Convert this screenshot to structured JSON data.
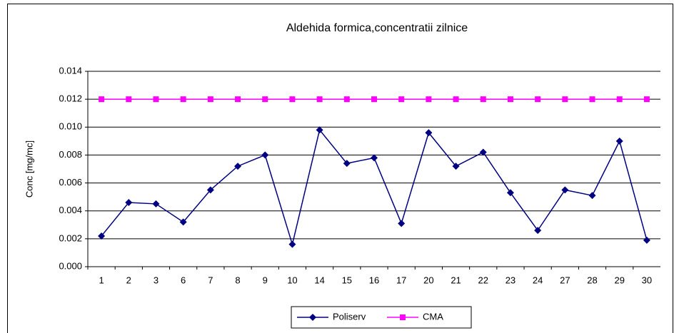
{
  "chart_data": {
    "type": "line",
    "title": "Aldehida formica,concentratii zilnice",
    "y_label": "Conc [mg/mc]",
    "categories": [
      "1",
      "2",
      "3",
      "6",
      "7",
      "8",
      "9",
      "10",
      "14",
      "15",
      "16",
      "17",
      "20",
      "21",
      "22",
      "23",
      "24",
      "27",
      "28",
      "29",
      "30"
    ],
    "series": [
      {
        "name": "Poliserv",
        "color": "#000080",
        "marker": "diamond",
        "values": [
          0.0022,
          0.0046,
          0.0045,
          0.0032,
          0.0055,
          0.0072,
          0.008,
          0.0016,
          0.0098,
          0.0074,
          0.0078,
          0.0031,
          0.0096,
          0.0072,
          0.0082,
          0.0053,
          0.0026,
          0.0055,
          0.0051,
          0.009,
          0.0019
        ]
      },
      {
        "name": "CMA",
        "color": "#ff00ff",
        "marker": "square",
        "values": [
          0.012,
          0.012,
          0.012,
          0.012,
          0.012,
          0.012,
          0.012,
          0.012,
          0.012,
          0.012,
          0.012,
          0.012,
          0.012,
          0.012,
          0.012,
          0.012,
          0.012,
          0.012,
          0.012,
          0.012,
          0.012
        ]
      }
    ],
    "ylim": [
      0,
      0.014
    ],
    "yticks": [
      {
        "value": 0,
        "label": "0.000"
      },
      {
        "value": 0.002,
        "label": "0.002"
      },
      {
        "value": 0.004,
        "label": "0.004"
      },
      {
        "value": 0.006,
        "label": "0.006"
      },
      {
        "value": 0.008,
        "label": "0.008"
      },
      {
        "value": 0.01,
        "label": "0.010"
      },
      {
        "value": 0.012,
        "label": "0.012"
      },
      {
        "value": 0.014,
        "label": "0.014"
      }
    ],
    "grid": true,
    "legend": "bottom"
  }
}
